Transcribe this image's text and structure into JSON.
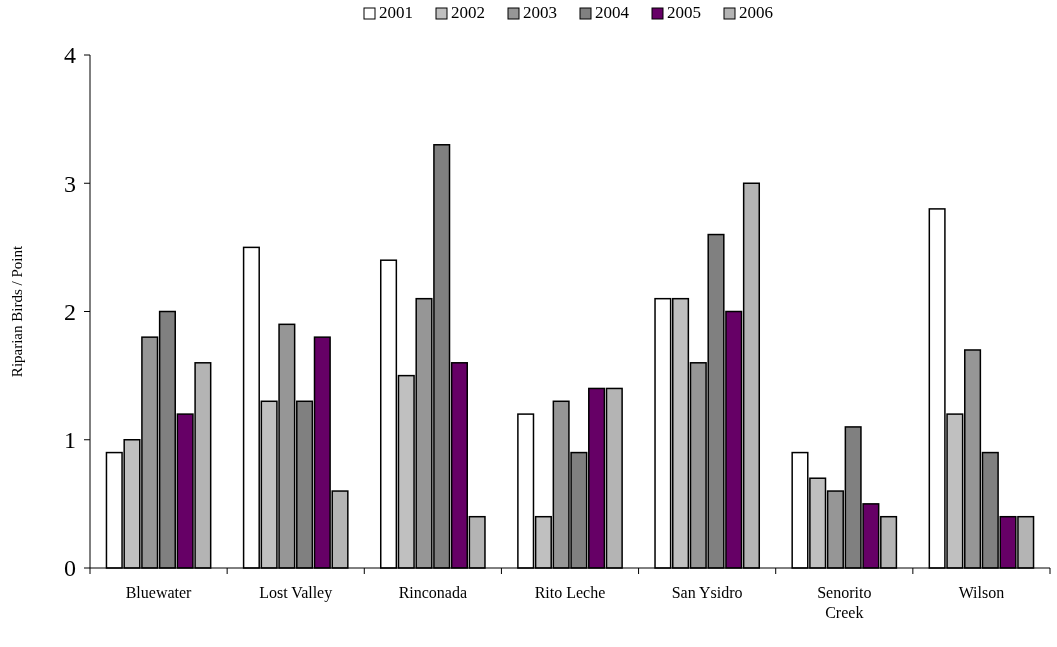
{
  "chart_data": {
    "type": "bar",
    "ylabel": "Riparian Birds / Point",
    "categories": [
      "Bluewater",
      "Lost Valley",
      "Rinconada",
      "Rito Leche",
      "San Ysidro",
      "Senorito Creek",
      "Wilson"
    ],
    "series": [
      {
        "name": "2001",
        "color": "#ffffff",
        "values": [
          0.9,
          2.5,
          2.4,
          1.2,
          2.1,
          0.9,
          2.8
        ]
      },
      {
        "name": "2002",
        "color": "#c0c0c0",
        "values": [
          1.0,
          1.3,
          1.5,
          0.4,
          2.1,
          0.7,
          1.2
        ]
      },
      {
        "name": "2003",
        "color": "#969696",
        "values": [
          1.8,
          1.9,
          2.1,
          1.3,
          1.6,
          0.6,
          1.7
        ]
      },
      {
        "name": "2004",
        "color": "#808080",
        "values": [
          2.0,
          1.3,
          3.3,
          0.9,
          2.6,
          1.1,
          0.9
        ]
      },
      {
        "name": "2005",
        "color": "#660066",
        "values": [
          1.2,
          1.8,
          1.6,
          1.4,
          2.0,
          0.5,
          0.4
        ]
      },
      {
        "name": "2006",
        "color": "#b4b4b4",
        "values": [
          1.6,
          0.6,
          0.4,
          1.4,
          3.0,
          0.4,
          0.4
        ]
      }
    ],
    "ylim": [
      0,
      4
    ],
    "yticks": [
      0,
      1,
      2,
      3,
      4
    ],
    "grid": false,
    "legend": "top"
  }
}
